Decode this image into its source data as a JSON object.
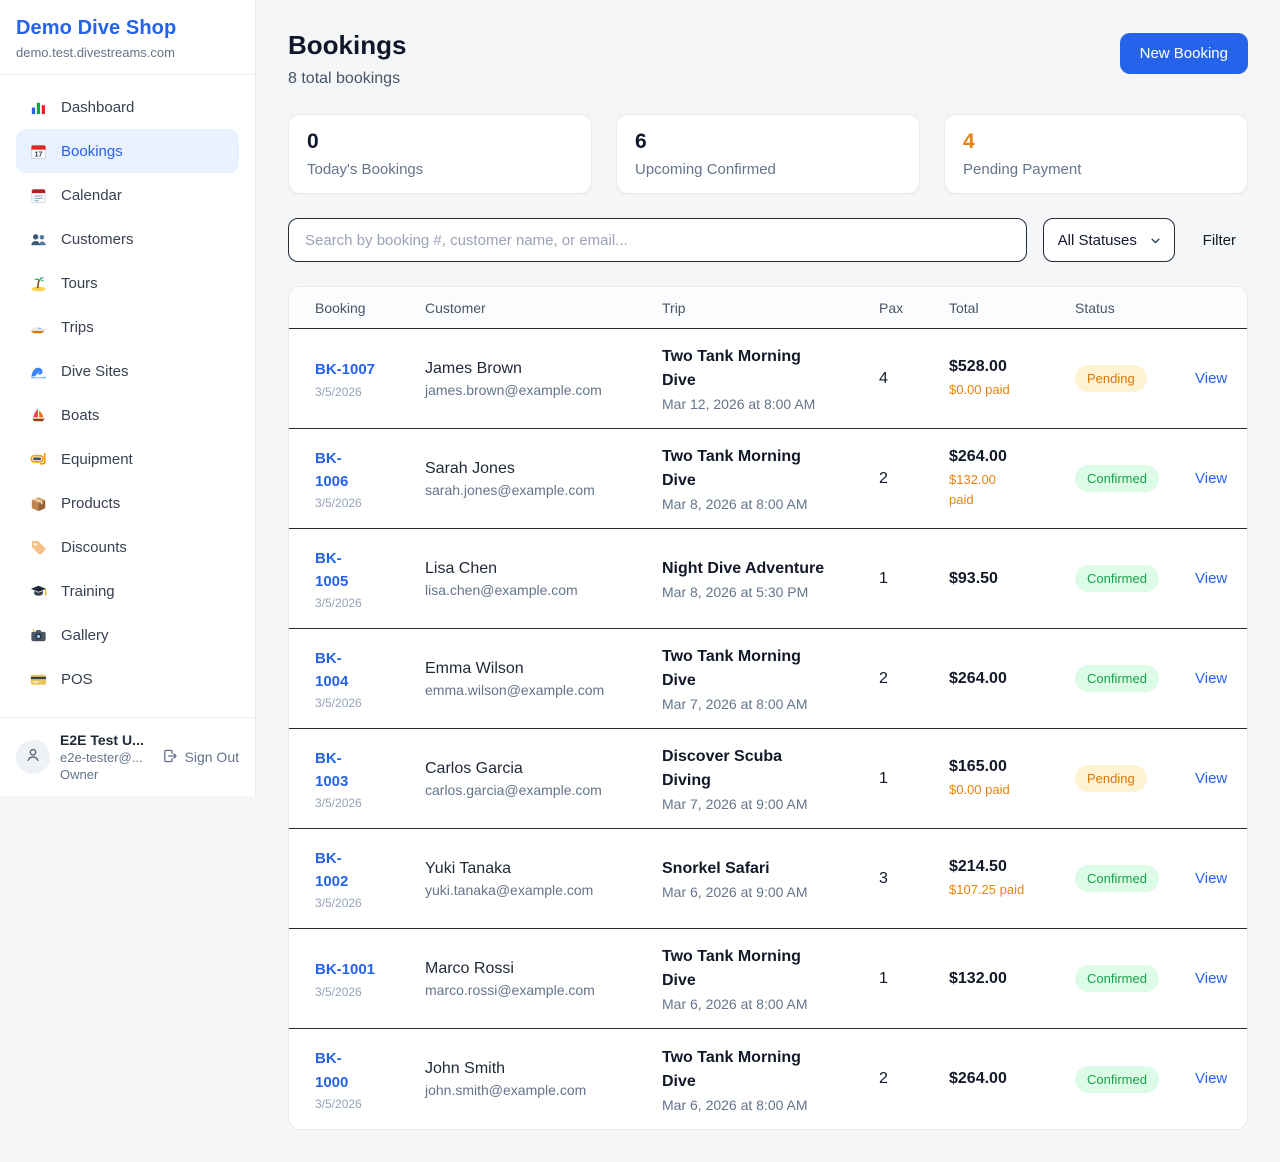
{
  "sidebar": {
    "brand": {
      "name": "Demo Dive Shop",
      "domain": "demo.test.divestreams.com"
    },
    "nav": [
      {
        "label": "Dashboard",
        "icon": "bar-chart",
        "active": false
      },
      {
        "label": "Bookings",
        "icon": "calendar",
        "active": true
      },
      {
        "label": "Calendar",
        "icon": "tear-off-calendar",
        "active": false
      },
      {
        "label": "Customers",
        "icon": "users",
        "active": false
      },
      {
        "label": "Tours",
        "icon": "island",
        "active": false
      },
      {
        "label": "Trips",
        "icon": "speedboat",
        "active": false
      },
      {
        "label": "Dive Sites",
        "icon": "wave",
        "active": false
      },
      {
        "label": "Boats",
        "icon": "sailboat",
        "active": false
      },
      {
        "label": "Equipment",
        "icon": "diving-mask",
        "active": false
      },
      {
        "label": "Products",
        "icon": "package",
        "active": false
      },
      {
        "label": "Discounts",
        "icon": "tag",
        "active": false
      },
      {
        "label": "Training",
        "icon": "graduation-cap",
        "active": false
      },
      {
        "label": "Gallery",
        "icon": "camera",
        "active": false
      },
      {
        "label": "POS",
        "icon": "credit-card",
        "active": false
      }
    ],
    "user": {
      "name": "E2E Test U...",
      "email": "e2e-tester@...",
      "role": "Owner",
      "sign_out_label": "Sign Out"
    }
  },
  "header": {
    "title": "Bookings",
    "subtitle": "8 total bookings",
    "new_booking_label": "New Booking"
  },
  "stats": [
    {
      "value": "0",
      "label": "Today's Bookings",
      "highlight": false
    },
    {
      "value": "6",
      "label": "Upcoming Confirmed",
      "highlight": false
    },
    {
      "value": "4",
      "label": "Pending Payment",
      "highlight": true
    }
  ],
  "controls": {
    "search_placeholder": "Search by booking #, customer name, or email...",
    "status_filter_value": "All Statuses",
    "filter_label": "Filter"
  },
  "table": {
    "columns": [
      "Booking",
      "Customer",
      "Trip",
      "Pax",
      "Total",
      "Status"
    ],
    "rows": [
      {
        "id_lines": [
          "BK-1007"
        ],
        "date": "3/5/2026",
        "customer": "James Brown",
        "email": "james.brown@example.com",
        "trip_lines": [
          "Two Tank Morning",
          "Dive"
        ],
        "trip_datetime": "Mar 12, 2026 at 8:00 AM",
        "pax": "4",
        "total": "$528.00",
        "paid_lines": [
          "$0.00 paid"
        ],
        "status": "Pending",
        "view_label": "View"
      },
      {
        "id_lines": [
          "BK-",
          "1006"
        ],
        "date": "3/5/2026",
        "customer": "Sarah Jones",
        "email": "sarah.jones@example.com",
        "trip_lines": [
          "Two Tank Morning",
          "Dive"
        ],
        "trip_datetime": "Mar 8, 2026 at 8:00 AM",
        "pax": "2",
        "total": "$264.00",
        "paid_lines": [
          "$132.00",
          "paid"
        ],
        "status": "Confirmed",
        "view_label": "View"
      },
      {
        "id_lines": [
          "BK-",
          "1005"
        ],
        "date": "3/5/2026",
        "customer": "Lisa Chen",
        "email": "lisa.chen@example.com",
        "trip_lines": [
          "Night Dive Adventure"
        ],
        "trip_datetime": "Mar 8, 2026 at 5:30 PM",
        "pax": "1",
        "total": "$93.50",
        "paid_lines": null,
        "status": "Confirmed",
        "view_label": "View"
      },
      {
        "id_lines": [
          "BK-",
          "1004"
        ],
        "date": "3/5/2026",
        "customer": "Emma Wilson",
        "email": "emma.wilson@example.com",
        "trip_lines": [
          "Two Tank Morning",
          "Dive"
        ],
        "trip_datetime": "Mar 7, 2026 at 8:00 AM",
        "pax": "2",
        "total": "$264.00",
        "paid_lines": null,
        "status": "Confirmed",
        "view_label": "View"
      },
      {
        "id_lines": [
          "BK-",
          "1003"
        ],
        "date": "3/5/2026",
        "customer": "Carlos Garcia",
        "email": "carlos.garcia@example.com",
        "trip_lines": [
          "Discover Scuba",
          "Diving"
        ],
        "trip_datetime": "Mar 7, 2026 at 9:00 AM",
        "pax": "1",
        "total": "$165.00",
        "paid_lines": [
          "$0.00 paid"
        ],
        "status": "Pending",
        "view_label": "View"
      },
      {
        "id_lines": [
          "BK-",
          "1002"
        ],
        "date": "3/5/2026",
        "customer": "Yuki Tanaka",
        "email": "yuki.tanaka@example.com",
        "trip_lines": [
          "Snorkel Safari"
        ],
        "trip_datetime": "Mar 6, 2026 at 9:00 AM",
        "pax": "3",
        "total": "$214.50",
        "paid_lines": [
          "$107.25 paid"
        ],
        "status": "Confirmed",
        "view_label": "View"
      },
      {
        "id_lines": [
          "BK-1001"
        ],
        "date": "3/5/2026",
        "customer": "Marco Rossi",
        "email": "marco.rossi@example.com",
        "trip_lines": [
          "Two Tank Morning",
          "Dive"
        ],
        "trip_datetime": "Mar 6, 2026 at 8:00 AM",
        "pax": "1",
        "total": "$132.00",
        "paid_lines": null,
        "status": "Confirmed",
        "view_label": "View"
      },
      {
        "id_lines": [
          "BK-",
          "1000"
        ],
        "date": "3/5/2026",
        "customer": "John Smith",
        "email": "john.smith@example.com",
        "trip_lines": [
          "Two Tank Morning",
          "Dive"
        ],
        "trip_datetime": "Mar 6, 2026 at 8:00 AM",
        "pax": "2",
        "total": "$264.00",
        "paid_lines": null,
        "status": "Confirmed",
        "view_label": "View"
      }
    ]
  },
  "colors": {
    "accent": "#2563eb",
    "highlight_orange": "#e8820c",
    "pending_text": "#d97706",
    "pending_bg": "#fdf3d3",
    "confirmed_text": "#16a34a",
    "confirmed_bg": "#dcfce7"
  }
}
